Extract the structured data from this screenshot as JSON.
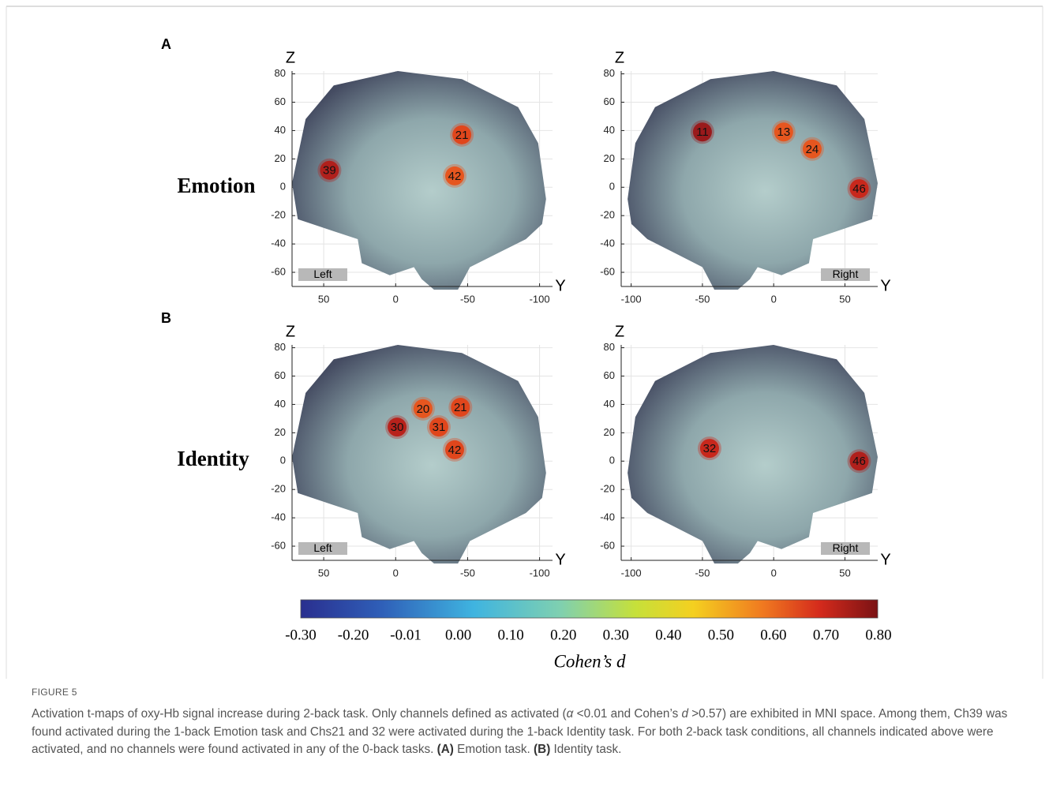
{
  "figure": {
    "panel_labels": [
      "A",
      "B"
    ],
    "row_labels": [
      "Emotion",
      "Identity"
    ],
    "axis_labels": {
      "z": "Z",
      "y": "Y"
    },
    "zlim": [
      -70,
      82
    ],
    "zticks": [
      80,
      60,
      40,
      20,
      0,
      -20,
      -40,
      -60
    ],
    "panels": [
      {
        "side": "Left",
        "ylim": [
          72,
          -109
        ],
        "yticks": [
          50,
          0,
          -50,
          -100
        ],
        "channels": [
          {
            "label": "39",
            "y": 46,
            "z": 12,
            "color": "#b0201c"
          },
          {
            "label": "21",
            "y": -46,
            "z": 37,
            "color": "#e0461c"
          },
          {
            "label": "42",
            "y": -41,
            "z": 8,
            "color": "#e6561f"
          }
        ]
      },
      {
        "side": "Right",
        "ylim": [
          -107,
          73
        ],
        "yticks": [
          -100,
          -50,
          0,
          50
        ],
        "channels": [
          {
            "label": "11",
            "y": -50,
            "z": 39,
            "color": "#9a1a1c"
          },
          {
            "label": "13",
            "y": 7,
            "z": 39,
            "color": "#e6561f"
          },
          {
            "label": "24",
            "y": 27,
            "z": 27,
            "color": "#e6561f"
          },
          {
            "label": "46",
            "y": 60,
            "z": -1,
            "color": "#c8281c"
          }
        ]
      },
      {
        "side": "Left",
        "ylim": [
          72,
          -109
        ],
        "yticks": [
          50,
          0,
          -50,
          -100
        ],
        "channels": [
          {
            "label": "30",
            "y": -1,
            "z": 24,
            "color": "#b8221c"
          },
          {
            "label": "20",
            "y": -19,
            "z": 37,
            "color": "#e6561f"
          },
          {
            "label": "21",
            "y": -45,
            "z": 38,
            "color": "#e0461c"
          },
          {
            "label": "31",
            "y": -30,
            "z": 24,
            "color": "#e0461c"
          },
          {
            "label": "42",
            "y": -41,
            "z": 8,
            "color": "#e0461c"
          }
        ]
      },
      {
        "side": "Right",
        "ylim": [
          -107,
          73
        ],
        "yticks": [
          -100,
          -50,
          0,
          50
        ],
        "channels": [
          {
            "label": "32",
            "y": -45,
            "z": 9,
            "color": "#c8281c"
          },
          {
            "label": "46",
            "y": 60,
            "z": 0,
            "color": "#b0201c"
          }
        ]
      }
    ],
    "colorbar": {
      "ticks": [
        "-0.30",
        "-0.20",
        "-0.01",
        "0.00",
        "0.10",
        "0.20",
        "0.30",
        "0.40",
        "0.50",
        "0.60",
        "0.70",
        "0.80"
      ],
      "label": "Cohen’s d"
    },
    "caption": {
      "figure_number": "FIGURE 5",
      "parts": [
        "Activation t-maps of oxy-Hb signal increase during 2-back task. Only channels defined as activated (",
        "α",
        " <0.01 and Cohen’s ",
        "d",
        " >0.57) are exhibited in MNI space. Among them, Ch39 was found activated during the 1-back Emotion task and Chs21 and 32 were activated during the 1-back Identity task. For both 2-back task conditions, all channels indicated above were activated, and no channels were found activated in any of the 0-back tasks. ",
        "(A)",
        " Emotion task. ",
        "(B)",
        " Identity task."
      ]
    }
  }
}
